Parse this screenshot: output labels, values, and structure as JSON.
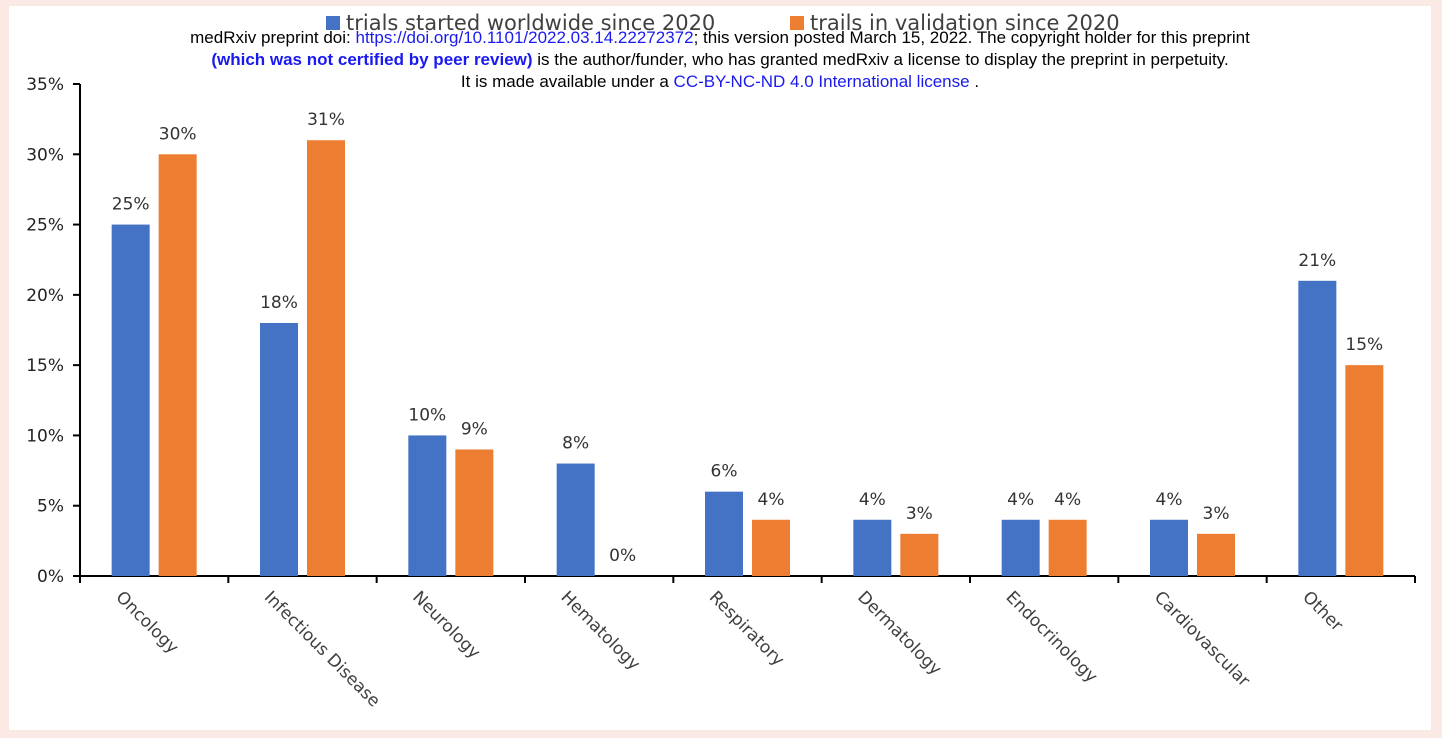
{
  "notice": {
    "line1_pre": "medRxiv preprint doi: ",
    "line1_link": "https://doi.org/10.1101/2022.03.14.22272372",
    "line1_post": "; this version posted March 15, 2022. The copyright holder for this preprint",
    "line2_bold": "(which was not certified by peer review)",
    "line2_post": " is the author/funder, who has granted medRxiv a license to display the preprint in perpetuity.",
    "line3_pre": "It is made available under a ",
    "line3_link": "CC-BY-NC-ND 4.0 International license",
    "line3_post": " ."
  },
  "colors": {
    "series1": "#4472c4",
    "series2": "#ed7d31",
    "background": "#fbe9e6"
  },
  "chart_data": {
    "type": "bar",
    "categories": [
      "Oncology",
      "Infectious Disease",
      "Neurology",
      "Hematology",
      "Respiratory",
      "Dermatology",
      "Endocrinology",
      "Cardiovascular",
      "Other"
    ],
    "series": [
      {
        "name": "trials started worldwide since 2020",
        "values": [
          25,
          18,
          10,
          8,
          6,
          4,
          4,
          4,
          21
        ]
      },
      {
        "name": "trails in validation since 2020",
        "values": [
          30,
          31,
          9,
          0,
          4,
          3,
          4,
          3,
          15
        ]
      }
    ],
    "yticks": [
      "0%",
      "5%",
      "10%",
      "15%",
      "20%",
      "25%",
      "30%",
      "35%"
    ],
    "ylim": [
      0,
      35
    ],
    "value_suffix": "%",
    "grid": false,
    "legend_position": "top"
  }
}
